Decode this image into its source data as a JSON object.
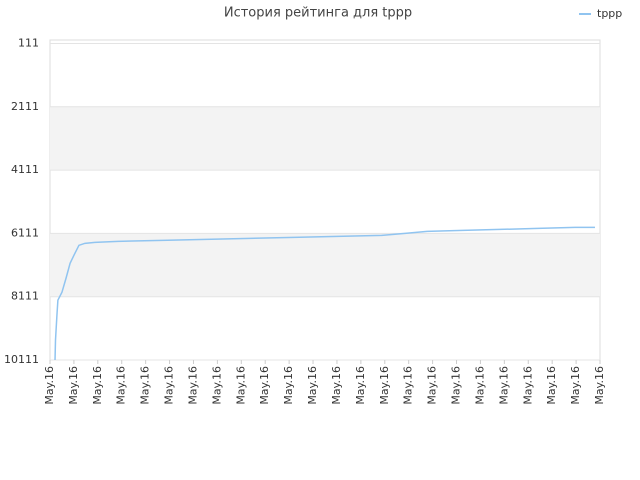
{
  "chart_data": {
    "type": "line",
    "title": "История рейтинга для tppp",
    "x": [
      0.21,
      0.23,
      0.29,
      0.33,
      0.5,
      0.67,
      0.84,
      1.0,
      1.21,
      1.46,
      1.88,
      2.84,
      4.68,
      6.52,
      8.36,
      10.2,
      12.04,
      13.88,
      14.85,
      15.77,
      17.27,
      18.82,
      20.41,
      21.95,
      22.79
    ],
    "series": [
      {
        "name": "tppp",
        "color": "#90c4f0",
        "values": [
          10111,
          9481,
          8693,
          8221,
          7969,
          7528,
          7055,
          6803,
          6488,
          6425,
          6394,
          6362,
          6331,
          6300,
          6268,
          6237,
          6205,
          6174,
          6111,
          6048,
          6016,
          5985,
          5953,
          5922,
          5922
        ]
      }
    ],
    "xlim": [
      0,
      23
    ],
    "xticks": [
      {
        "value": 0,
        "label": "May.16"
      },
      {
        "value": 1,
        "label": "May.16"
      },
      {
        "value": 2,
        "label": "May.16"
      },
      {
        "value": 3,
        "label": "May.16"
      },
      {
        "value": 4,
        "label": "May.16"
      },
      {
        "value": 5,
        "label": "May.16"
      },
      {
        "value": 6,
        "label": "May.16"
      },
      {
        "value": 7,
        "label": "May.16"
      },
      {
        "value": 8,
        "label": "May.16"
      },
      {
        "value": 9,
        "label": "May.16"
      },
      {
        "value": 10,
        "label": "May.16"
      },
      {
        "value": 11,
        "label": "May.16"
      },
      {
        "value": 12,
        "label": "May.16"
      },
      {
        "value": 13,
        "label": "May.16"
      },
      {
        "value": 14,
        "label": "May.16"
      },
      {
        "value": 15,
        "label": "May.16"
      },
      {
        "value": 16,
        "label": "May.16"
      },
      {
        "value": 17,
        "label": "May.16"
      },
      {
        "value": 18,
        "label": "May.16"
      },
      {
        "value": 19,
        "label": "May.16"
      },
      {
        "value": 20,
        "label": "May.16"
      },
      {
        "value": 21,
        "label": "May.16"
      },
      {
        "value": 22,
        "label": "May.16"
      },
      {
        "value": 23,
        "label": "May.16"
      }
    ],
    "ylim": [
      10111,
      0
    ],
    "yticks": [
      111,
      2111,
      4111,
      6111,
      8111,
      10111
    ],
    "legend": "top-right"
  }
}
